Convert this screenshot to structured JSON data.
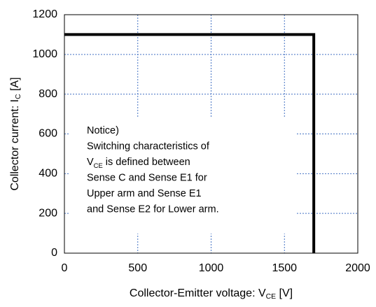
{
  "chart_data": {
    "type": "line",
    "xlabel": {
      "text": "Collector-Emitter voltage: V",
      "sub": "CE",
      "suffix": " [V]"
    },
    "ylabel": {
      "text": "Collector current: I",
      "sub": "C",
      "suffix": " [A]"
    },
    "x": [
      0,
      1700,
      1700
    ],
    "series": [
      {
        "color": "#000000",
        "values": [
          1100,
          1100,
          0
        ]
      }
    ],
    "xlim": [
      0,
      2000
    ],
    "xticks": [
      0,
      500,
      1000,
      1500,
      2000
    ],
    "ylim": [
      0,
      1200
    ],
    "yticks": [
      0,
      200,
      400,
      600,
      800,
      1000,
      1200
    ],
    "grid": true,
    "grid_color": "#4472c4",
    "annotation": [
      "Notice)",
      "Switching characteristics of",
      {
        "text": "V",
        "sub": "CE",
        "suffix": " is defined between"
      },
      "Sense C and Sense E1 for",
      "Upper arm and Sense  E1",
      "and Sense E2 for Lower arm."
    ]
  }
}
